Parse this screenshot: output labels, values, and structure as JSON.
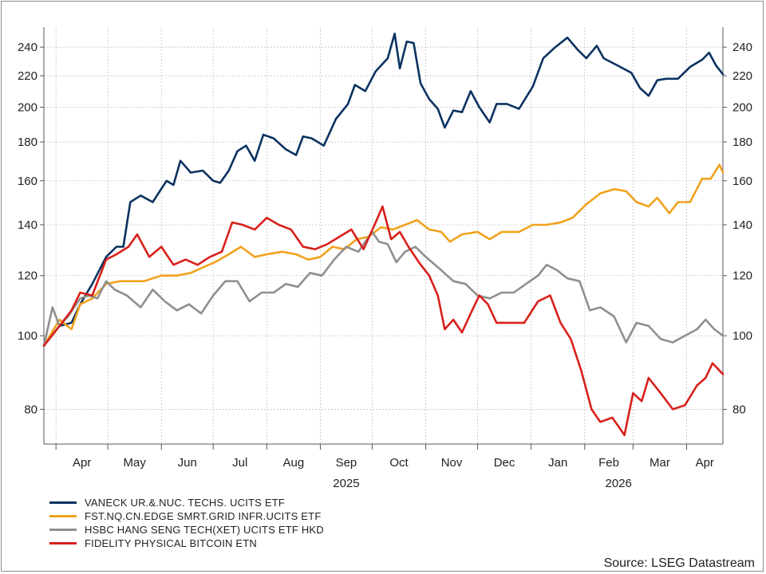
{
  "chart_data": {
    "type": "line",
    "title": "",
    "xlabel": "",
    "ylabel": "",
    "y_scale": "log",
    "ylim": [
      72,
      255
    ],
    "y_ticks": [
      80,
      100,
      120,
      140,
      160,
      180,
      200,
      220,
      240
    ],
    "x_month_labels": [
      "Apr",
      "May",
      "Jun",
      "Jul",
      "Aug",
      "Sep",
      "Oct",
      "Nov",
      "Dec",
      "Jan",
      "Feb",
      "Mar",
      "Apr"
    ],
    "x_year_labels": [
      {
        "label": "2025",
        "month_index": 5.5
      },
      {
        "label": "2026",
        "month_index": 10.7
      }
    ],
    "x_range": [
      "2025-03-25",
      "2026-04-22"
    ],
    "grid": true,
    "legend_position": "bottom-left",
    "source": "Source: LSEG Datastream",
    "series": [
      {
        "name": "VANECK UR.&.NUC. TECHS. UCITS ETF",
        "color": "#0b3260",
        "points": [
          [
            "2025-03-25",
            97
          ],
          [
            "2025-04-03",
            103
          ],
          [
            "2025-04-10",
            104
          ],
          [
            "2025-04-15",
            110
          ],
          [
            "2025-04-22",
            117
          ],
          [
            "2025-04-30",
            127
          ],
          [
            "2025-05-06",
            131
          ],
          [
            "2025-05-10",
            131
          ],
          [
            "2025-05-14",
            150
          ],
          [
            "2025-05-20",
            153
          ],
          [
            "2025-05-27",
            150
          ],
          [
            "2025-06-04",
            160
          ],
          [
            "2025-06-08",
            158
          ],
          [
            "2025-06-12",
            170
          ],
          [
            "2025-06-18",
            164
          ],
          [
            "2025-06-25",
            165
          ],
          [
            "2025-07-01",
            160
          ],
          [
            "2025-07-05",
            159
          ],
          [
            "2025-07-10",
            165
          ],
          [
            "2025-07-15",
            175
          ],
          [
            "2025-07-20",
            178
          ],
          [
            "2025-07-25",
            170
          ],
          [
            "2025-07-30",
            184
          ],
          [
            "2025-08-05",
            182
          ],
          [
            "2025-08-12",
            176
          ],
          [
            "2025-08-18",
            173
          ],
          [
            "2025-08-22",
            183
          ],
          [
            "2025-08-27",
            182
          ],
          [
            "2025-09-03",
            178
          ],
          [
            "2025-09-10",
            193
          ],
          [
            "2025-09-17",
            202
          ],
          [
            "2025-09-21",
            214
          ],
          [
            "2025-09-27",
            210
          ],
          [
            "2025-10-03",
            223
          ],
          [
            "2025-10-10",
            232
          ],
          [
            "2025-10-14",
            250
          ],
          [
            "2025-10-17",
            225
          ],
          [
            "2025-10-21",
            244
          ],
          [
            "2025-10-25",
            243
          ],
          [
            "2025-10-29",
            215
          ],
          [
            "2025-11-03",
            205
          ],
          [
            "2025-11-08",
            199
          ],
          [
            "2025-11-12",
            188
          ],
          [
            "2025-11-17",
            198
          ],
          [
            "2025-11-22",
            197
          ],
          [
            "2025-11-27",
            210
          ],
          [
            "2025-12-02",
            200
          ],
          [
            "2025-12-08",
            191
          ],
          [
            "2025-12-12",
            202
          ],
          [
            "2025-12-18",
            202
          ],
          [
            "2025-12-25",
            199
          ],
          [
            "2026-01-02",
            213
          ],
          [
            "2026-01-08",
            232
          ],
          [
            "2026-01-15",
            240
          ],
          [
            "2026-01-22",
            247
          ],
          [
            "2026-01-28",
            238
          ],
          [
            "2026-02-02",
            232
          ],
          [
            "2026-02-08",
            241
          ],
          [
            "2026-02-12",
            232
          ],
          [
            "2026-02-20",
            227
          ],
          [
            "2026-02-28",
            222
          ],
          [
            "2026-03-05",
            212
          ],
          [
            "2026-03-10",
            207
          ],
          [
            "2026-03-15",
            217
          ],
          [
            "2026-03-20",
            218
          ],
          [
            "2026-03-27",
            218
          ],
          [
            "2026-04-03",
            226
          ],
          [
            "2026-04-10",
            231
          ],
          [
            "2026-04-14",
            236
          ],
          [
            "2026-04-18",
            227
          ],
          [
            "2026-04-22",
            221
          ]
        ]
      },
      {
        "name": "FST.NQ.CN.EDGE SMRT.GRID INFR.UCITS ETF",
        "color": "#f0a21d",
        "points": [
          [
            "2025-03-25",
            97
          ],
          [
            "2025-04-03",
            105
          ],
          [
            "2025-04-10",
            102
          ],
          [
            "2025-04-15",
            110
          ],
          [
            "2025-04-22",
            112
          ],
          [
            "2025-04-30",
            117
          ],
          [
            "2025-05-08",
            118
          ],
          [
            "2025-05-15",
            118
          ],
          [
            "2025-05-22",
            118
          ],
          [
            "2025-06-01",
            120
          ],
          [
            "2025-06-10",
            120
          ],
          [
            "2025-06-18",
            121
          ],
          [
            "2025-06-25",
            123
          ],
          [
            "2025-07-02",
            125
          ],
          [
            "2025-07-10",
            128
          ],
          [
            "2025-07-17",
            131
          ],
          [
            "2025-07-25",
            127
          ],
          [
            "2025-08-01",
            128
          ],
          [
            "2025-08-10",
            129
          ],
          [
            "2025-08-18",
            128
          ],
          [
            "2025-08-25",
            126
          ],
          [
            "2025-09-01",
            127
          ],
          [
            "2025-09-08",
            131
          ],
          [
            "2025-09-15",
            130
          ],
          [
            "2025-09-22",
            134
          ],
          [
            "2025-09-29",
            135
          ],
          [
            "2025-10-06",
            139
          ],
          [
            "2025-10-13",
            138
          ],
          [
            "2025-10-20",
            140
          ],
          [
            "2025-10-27",
            142
          ],
          [
            "2025-11-03",
            138
          ],
          [
            "2025-11-10",
            137
          ],
          [
            "2025-11-15",
            133
          ],
          [
            "2025-11-22",
            136
          ],
          [
            "2025-12-01",
            137
          ],
          [
            "2025-12-08",
            134
          ],
          [
            "2025-12-15",
            137
          ],
          [
            "2025-12-25",
            137
          ],
          [
            "2026-01-02",
            140
          ],
          [
            "2026-01-10",
            140
          ],
          [
            "2026-01-18",
            141
          ],
          [
            "2026-01-25",
            143
          ],
          [
            "2026-02-02",
            149
          ],
          [
            "2026-02-10",
            154
          ],
          [
            "2026-02-18",
            156
          ],
          [
            "2026-02-25",
            155
          ],
          [
            "2026-03-03",
            150
          ],
          [
            "2026-03-10",
            148
          ],
          [
            "2026-03-15",
            152
          ],
          [
            "2026-03-22",
            145
          ],
          [
            "2026-03-27",
            150
          ],
          [
            "2026-04-03",
            150
          ],
          [
            "2026-04-10",
            161
          ],
          [
            "2026-04-15",
            161
          ],
          [
            "2026-04-20",
            168
          ],
          [
            "2026-04-22",
            164
          ]
        ]
      },
      {
        "name": "HSBC HANG SENG TECH(XET) UCITS ETF HKD",
        "color": "#8f8f8f",
        "points": [
          [
            "2025-03-25",
            97
          ],
          [
            "2025-03-30",
            109
          ],
          [
            "2025-04-03",
            103
          ],
          [
            "2025-04-08",
            106
          ],
          [
            "2025-04-15",
            112
          ],
          [
            "2025-04-20",
            113
          ],
          [
            "2025-04-25",
            112
          ],
          [
            "2025-04-30",
            118
          ],
          [
            "2025-05-05",
            115
          ],
          [
            "2025-05-12",
            113
          ],
          [
            "2025-05-20",
            109
          ],
          [
            "2025-05-27",
            115
          ],
          [
            "2025-06-03",
            111
          ],
          [
            "2025-06-10",
            108
          ],
          [
            "2025-06-17",
            110
          ],
          [
            "2025-06-24",
            107
          ],
          [
            "2025-07-01",
            113
          ],
          [
            "2025-07-08",
            118
          ],
          [
            "2025-07-15",
            118
          ],
          [
            "2025-07-22",
            111
          ],
          [
            "2025-07-29",
            114
          ],
          [
            "2025-08-05",
            114
          ],
          [
            "2025-08-12",
            117
          ],
          [
            "2025-08-19",
            116
          ],
          [
            "2025-08-26",
            121
          ],
          [
            "2025-09-02",
            120
          ],
          [
            "2025-09-09",
            126
          ],
          [
            "2025-09-16",
            131
          ],
          [
            "2025-09-23",
            129
          ],
          [
            "2025-10-01",
            137
          ],
          [
            "2025-10-05",
            133
          ],
          [
            "2025-10-10",
            132
          ],
          [
            "2025-10-15",
            125
          ],
          [
            "2025-10-20",
            129
          ],
          [
            "2025-10-26",
            131
          ],
          [
            "2025-11-01",
            127
          ],
          [
            "2025-11-10",
            122
          ],
          [
            "2025-11-17",
            118
          ],
          [
            "2025-11-24",
            117
          ],
          [
            "2025-12-01",
            113
          ],
          [
            "2025-12-08",
            112
          ],
          [
            "2025-12-15",
            114
          ],
          [
            "2025-12-22",
            114
          ],
          [
            "2025-12-29",
            117
          ],
          [
            "2026-01-05",
            120
          ],
          [
            "2026-01-10",
            124
          ],
          [
            "2026-01-16",
            122
          ],
          [
            "2026-01-22",
            119
          ],
          [
            "2026-01-29",
            118
          ],
          [
            "2026-02-04",
            108
          ],
          [
            "2026-02-10",
            109
          ],
          [
            "2026-02-18",
            106
          ],
          [
            "2026-02-25",
            98
          ],
          [
            "2026-03-03",
            104
          ],
          [
            "2026-03-10",
            103
          ],
          [
            "2026-03-17",
            99
          ],
          [
            "2026-03-24",
            98
          ],
          [
            "2026-03-31",
            100
          ],
          [
            "2026-04-07",
            102
          ],
          [
            "2026-04-12",
            105
          ],
          [
            "2026-04-17",
            102
          ],
          [
            "2026-04-22",
            100
          ]
        ]
      },
      {
        "name": "FIDELITY PHYSICAL BITCOIN ETN",
        "color": "#d8201b",
        "points": [
          [
            "2025-03-25",
            97
          ],
          [
            "2025-04-03",
            103
          ],
          [
            "2025-04-10",
            108
          ],
          [
            "2025-04-15",
            114
          ],
          [
            "2025-04-22",
            113
          ],
          [
            "2025-04-30",
            126
          ],
          [
            "2025-05-06",
            128
          ],
          [
            "2025-05-13",
            131
          ],
          [
            "2025-05-18",
            136
          ],
          [
            "2025-05-25",
            127
          ],
          [
            "2025-06-01",
            131
          ],
          [
            "2025-06-08",
            124
          ],
          [
            "2025-06-15",
            126
          ],
          [
            "2025-06-22",
            124
          ],
          [
            "2025-06-29",
            127
          ],
          [
            "2025-07-06",
            129
          ],
          [
            "2025-07-12",
            141
          ],
          [
            "2025-07-18",
            140
          ],
          [
            "2025-07-25",
            138
          ],
          [
            "2025-08-01",
            143
          ],
          [
            "2025-08-08",
            140
          ],
          [
            "2025-08-15",
            138
          ],
          [
            "2025-08-22",
            131
          ],
          [
            "2025-08-29",
            130
          ],
          [
            "2025-09-05",
            132
          ],
          [
            "2025-09-12",
            135
          ],
          [
            "2025-09-19",
            138
          ],
          [
            "2025-09-26",
            130
          ],
          [
            "2025-10-03",
            141
          ],
          [
            "2025-10-07",
            148
          ],
          [
            "2025-10-12",
            134
          ],
          [
            "2025-10-17",
            137
          ],
          [
            "2025-10-22",
            131
          ],
          [
            "2025-10-28",
            125
          ],
          [
            "2025-11-03",
            120
          ],
          [
            "2025-11-08",
            113
          ],
          [
            "2025-11-12",
            102
          ],
          [
            "2025-11-17",
            105
          ],
          [
            "2025-11-22",
            101
          ],
          [
            "2025-11-27",
            107
          ],
          [
            "2025-12-02",
            113
          ],
          [
            "2025-12-07",
            110
          ],
          [
            "2025-12-12",
            104
          ],
          [
            "2025-12-20",
            104
          ],
          [
            "2025-12-28",
            104
          ],
          [
            "2026-01-05",
            111
          ],
          [
            "2026-01-12",
            113
          ],
          [
            "2026-01-18",
            104
          ],
          [
            "2026-01-24",
            99
          ],
          [
            "2026-01-30",
            90
          ],
          [
            "2026-02-05",
            80
          ],
          [
            "2026-02-10",
            77
          ],
          [
            "2026-02-17",
            78
          ],
          [
            "2026-02-24",
            74
          ],
          [
            "2026-03-01",
            84
          ],
          [
            "2026-03-06",
            82
          ],
          [
            "2026-03-10",
            88
          ],
          [
            "2026-03-17",
            84
          ],
          [
            "2026-03-24",
            80
          ],
          [
            "2026-03-31",
            81
          ],
          [
            "2026-04-07",
            86
          ],
          [
            "2026-04-12",
            88
          ],
          [
            "2026-04-16",
            92
          ],
          [
            "2026-04-22",
            89
          ]
        ]
      }
    ]
  }
}
